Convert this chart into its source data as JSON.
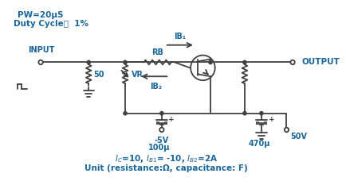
{
  "title_line1": "PW=20μS",
  "title_line2": "Duty Cycle：  1%",
  "label_input": "INPUT",
  "label_output": "OUTPUT",
  "label_RB": "RB",
  "label_50": "50",
  "label_VR": "VR",
  "label_IB1": "IB₁",
  "label_IB2": "IB₂",
  "label_100u": "100μ",
  "label_470u": "470μ",
  "label_neg5V": "-5V",
  "label_50V": "50V",
  "bottom_line1": "I₄=10, IB₁= -10, IB₂=2A",
  "bottom_line2": "Unit (resistance:Ω, capacitance: F)",
  "text_color": "#1a6699",
  "line_color": "#404040",
  "bg_color": "#ffffff",
  "fig_width": 4.35,
  "fig_height": 2.33,
  "dpi": 100
}
